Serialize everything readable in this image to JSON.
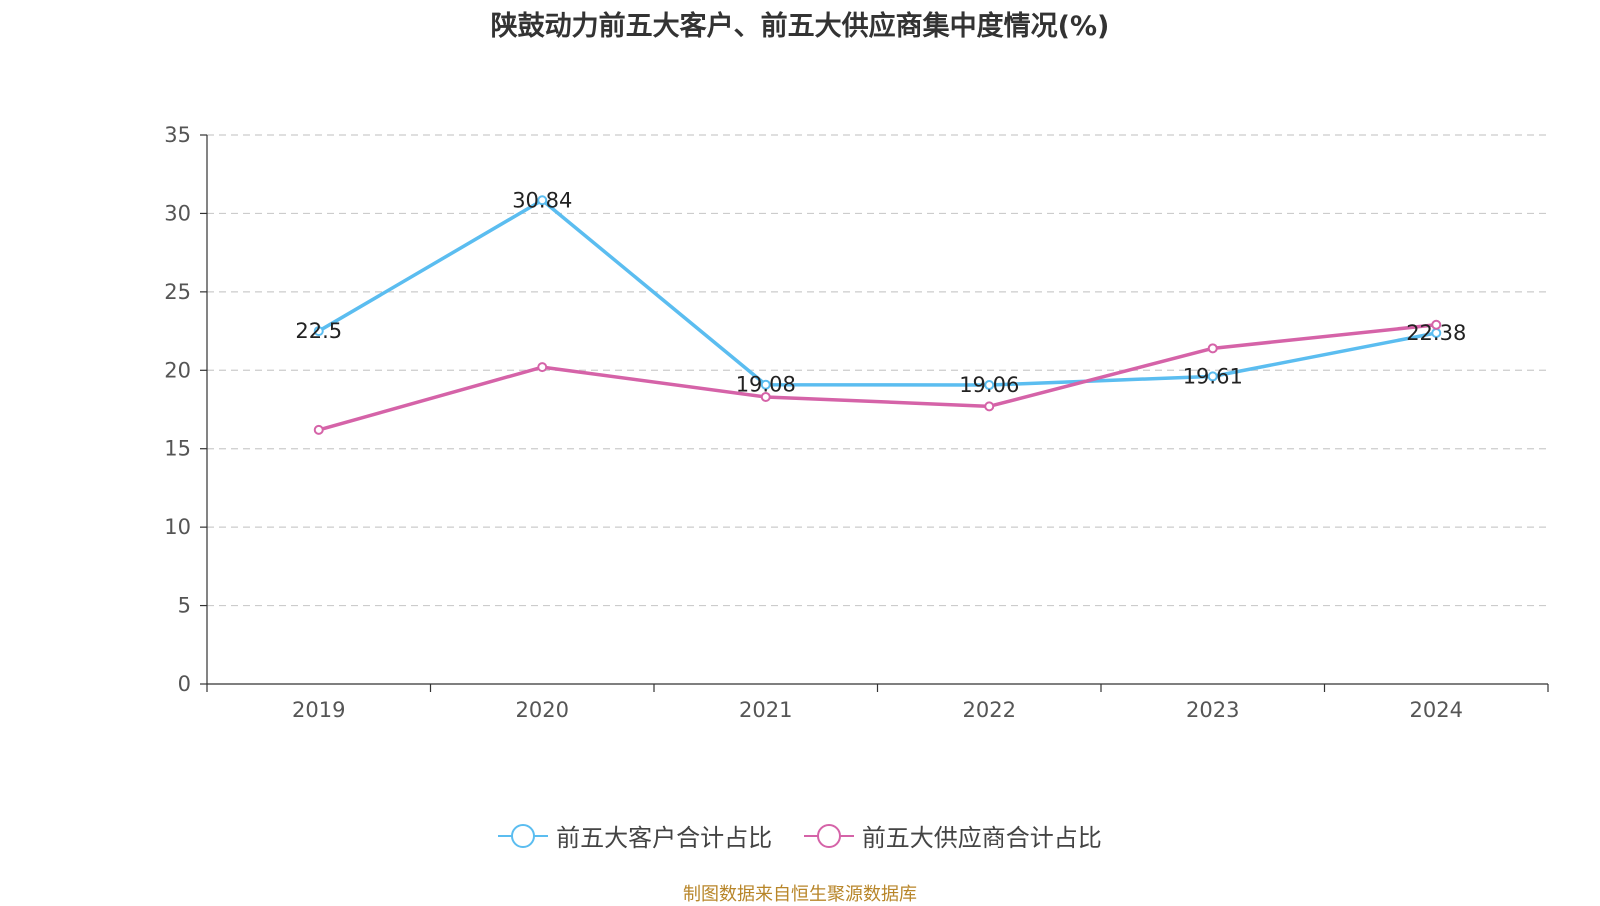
{
  "colors": {
    "customers": "#5bbdf0",
    "suppliers": "#d563a8",
    "source_text": "#b8862a"
  },
  "legend": {
    "customers_label": "前五大客户合计占比",
    "suppliers_label": "前五大供应商合计占比"
  },
  "source_note": "制图数据来自恒生聚源数据库",
  "chart_data": {
    "type": "line",
    "title": "陕鼓动力前五大客户、前五大供应商集中度情况(%)",
    "xlabel": "",
    "ylabel": "",
    "categories": [
      "2019",
      "2020",
      "2021",
      "2022",
      "2023",
      "2024"
    ],
    "ylim": [
      0,
      35
    ],
    "yticks": [
      0,
      5,
      10,
      15,
      20,
      25,
      30,
      35
    ],
    "grid": true,
    "legend_position": "bottom-center",
    "series": [
      {
        "name": "前五大客户合计占比",
        "values": [
          22.5,
          30.84,
          19.08,
          19.06,
          19.61,
          22.38
        ],
        "labels": [
          "22.5",
          "30.84",
          "19.08",
          "19.06",
          "19.61",
          "22.38"
        ],
        "show_labels": true
      },
      {
        "name": "前五大供应商合计占比",
        "values": [
          16.2,
          20.2,
          18.3,
          17.7,
          21.4,
          22.9
        ],
        "show_labels": false
      }
    ]
  }
}
